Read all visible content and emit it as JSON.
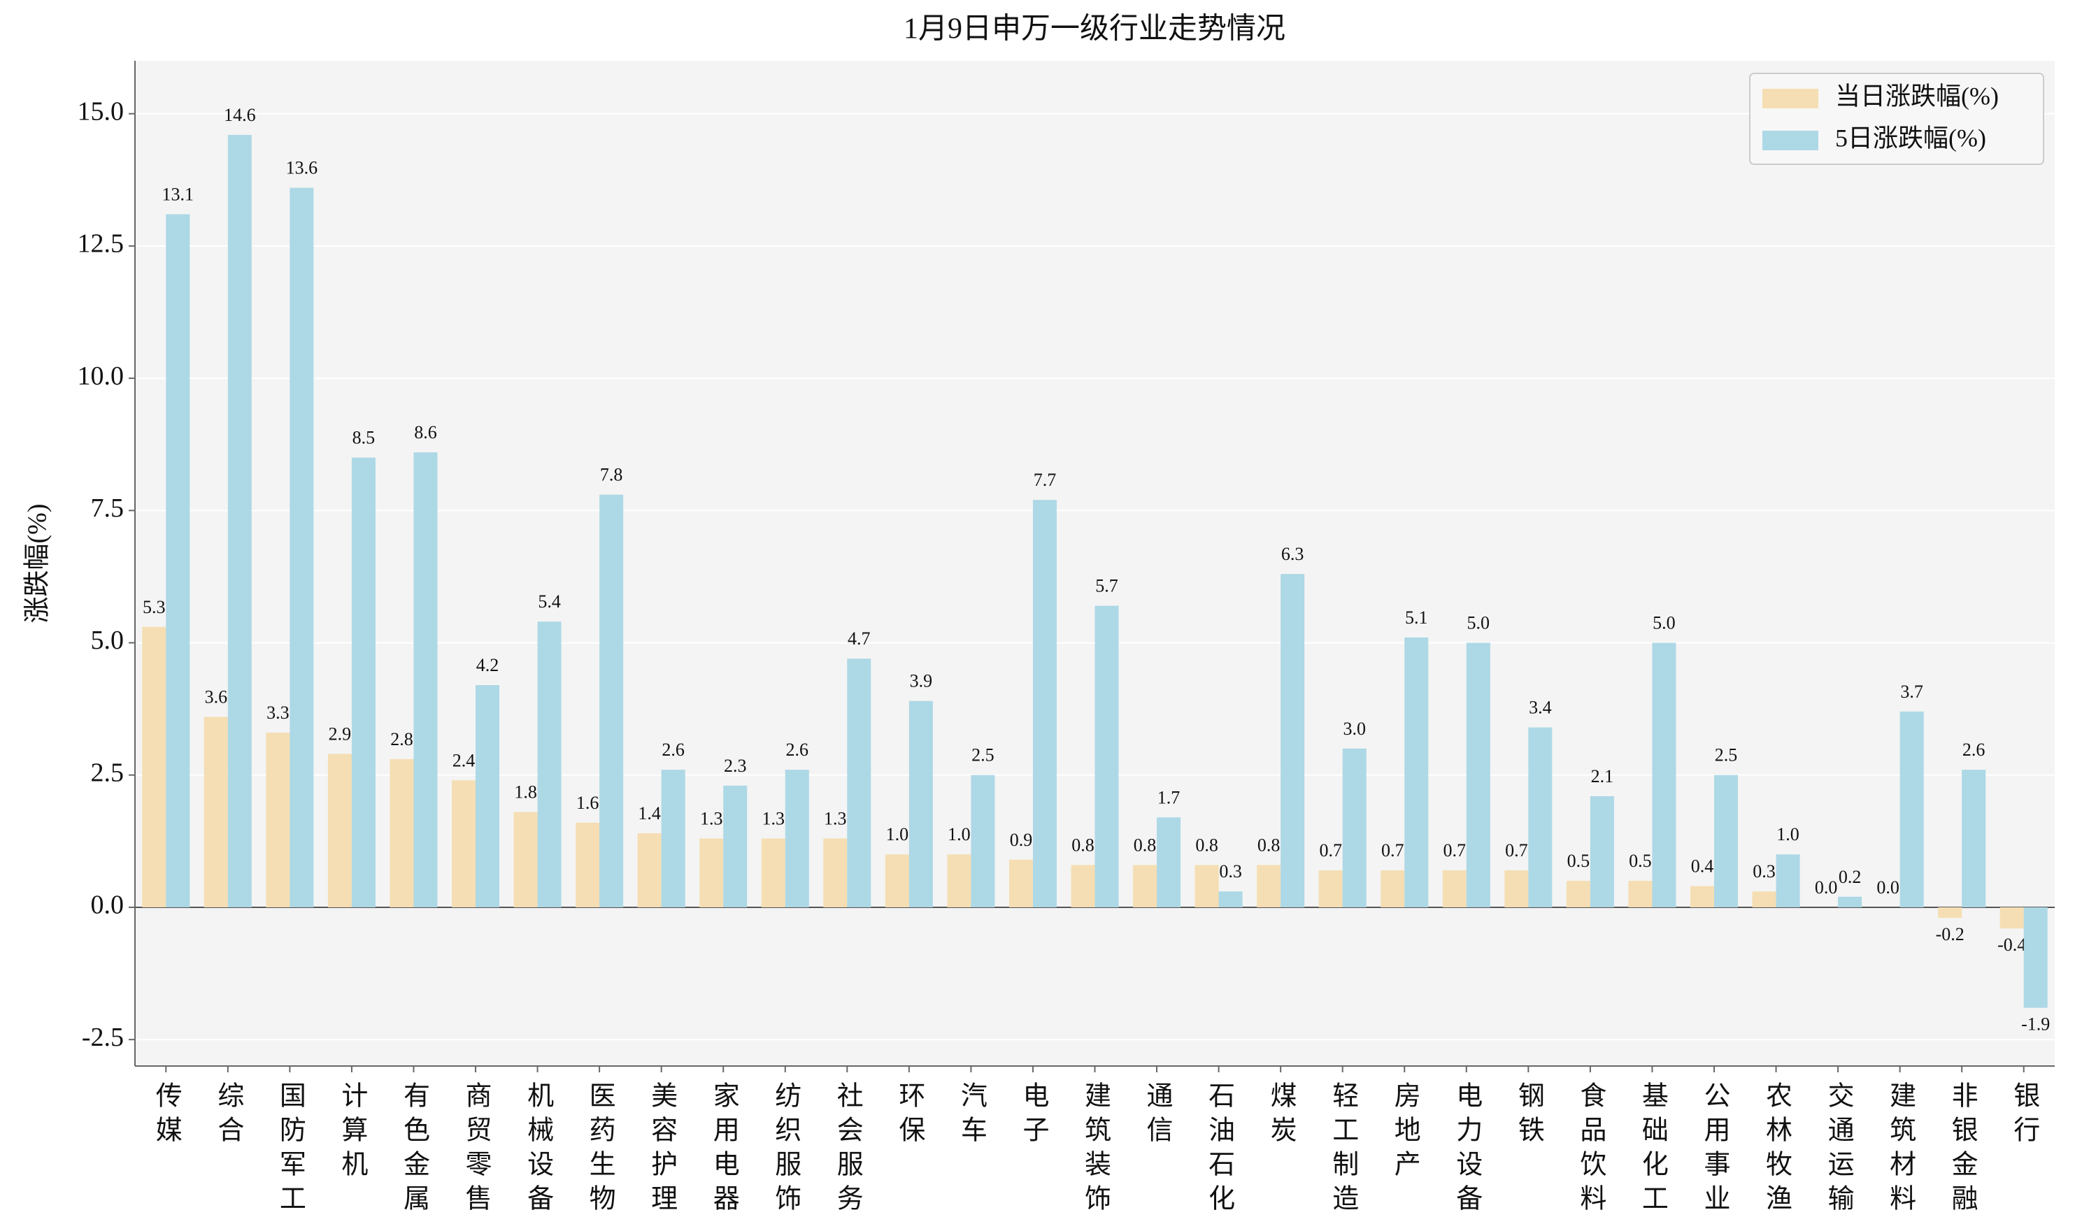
{
  "chart_data": {
    "type": "bar",
    "title": "1月9日申万一级行业走势情况",
    "y_label": "涨跌幅(%)",
    "categories": [
      "传媒",
      "综合",
      "国防军工",
      "计算机",
      "有色金属",
      "商贸零售",
      "机械设备",
      "医药生物",
      "美容护理",
      "家用电器",
      "纺织服饰",
      "社会服务",
      "环保",
      "汽车",
      "电子",
      "建筑装饰",
      "通信",
      "石油石化",
      "煤炭",
      "轻工制造",
      "房地产",
      "电力设备",
      "钢铁",
      "食品饮料",
      "基础化工",
      "公用事业",
      "农林牧渔",
      "交通运输",
      "建筑材料",
      "非银金融",
      "银行"
    ],
    "series": [
      {
        "name": "当日涨跌幅(%)",
        "color": "#f5deb3",
        "values": [
          5.3,
          3.6,
          3.3,
          2.9,
          2.8,
          2.4,
          1.8,
          1.6,
          1.4,
          1.3,
          1.3,
          1.3,
          1.0,
          1.0,
          0.9,
          0.8,
          0.8,
          0.8,
          0.8,
          0.7,
          0.7,
          0.7,
          0.7,
          0.5,
          0.5,
          0.4,
          0.3,
          0.0,
          0.0,
          -0.2,
          -0.4
        ],
        "value_labels": [
          "5.3",
          "3.6",
          "3.3",
          "2.9",
          "2.8",
          "2.4",
          "1.8",
          "1.6",
          "1.4",
          "1.3",
          "1.3",
          "1.3",
          "1.0",
          "1.0",
          "0.9",
          "0.8",
          "0.8",
          "0.8",
          "0.8",
          "0.7",
          "0.7",
          "0.7",
          "0.7",
          "0.5",
          "0.5",
          "0.4",
          "0.3",
          "0.0",
          "0.0",
          "-0.2",
          "-0.4"
        ]
      },
      {
        "name": "5日涨跌幅(%)",
        "color": "#add8e6",
        "values": [
          13.1,
          14.6,
          13.6,
          8.5,
          8.6,
          4.2,
          5.4,
          7.8,
          2.6,
          2.3,
          2.6,
          4.7,
          3.9,
          2.5,
          7.7,
          5.7,
          1.7,
          0.3,
          6.3,
          3.0,
          5.1,
          5.0,
          3.4,
          2.1,
          5.0,
          2.5,
          1.0,
          0.2,
          3.7,
          2.6,
          -1.9
        ],
        "value_labels": [
          "13.1",
          "14.6",
          "13.6",
          "8.5",
          "8.6",
          "4.2",
          "5.4",
          "7.8",
          "2.6",
          "2.3",
          "2.6",
          "4.7",
          "3.9",
          "2.5",
          "7.7",
          "5.7",
          "1.7",
          "0.3",
          "6.3",
          "3.0",
          "5.1",
          "5.0",
          "3.4",
          "2.1",
          "5.0",
          "2.5",
          "1.0",
          "0.2",
          "3.7",
          "2.6",
          "-1.9"
        ]
      }
    ],
    "ylim": [
      -3.0,
      16.0
    ],
    "yticks": [
      {
        "value": -2.5,
        "label": "-2.5"
      },
      {
        "value": 0,
        "label": "0.0"
      },
      {
        "value": 2.5,
        "label": "2.5"
      },
      {
        "value": 5,
        "label": "5.0"
      },
      {
        "value": 7.5,
        "label": "7.5"
      },
      {
        "value": 10,
        "label": "10.0"
      },
      {
        "value": 12.5,
        "label": "12.5"
      },
      {
        "value": 15,
        "label": "15.0"
      }
    ],
    "grid": true,
    "legend": "upper right"
  }
}
